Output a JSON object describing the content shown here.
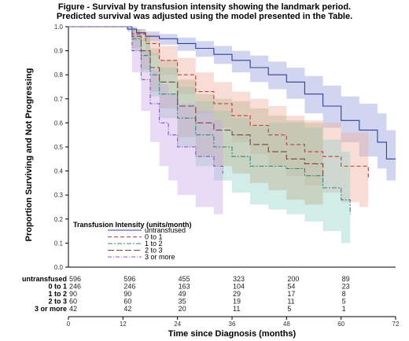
{
  "chart_data": {
    "type": "line",
    "title": "Figure - Survival by transfusion intensity showing the landmark period.",
    "subtitle": "Predicted survival was adjusted using the model presented in the Table.",
    "xlabel": "Time since Diagnosis (months)",
    "ylabel": "Proportion Surviving and Not Progressing",
    "xlim": [
      0,
      72
    ],
    "ylim": [
      0,
      1
    ],
    "x_ticks": [
      "0",
      "12",
      "24",
      "36",
      "48",
      "60",
      "72"
    ],
    "y_ticks": [
      "0.0",
      "0.1",
      "0.2",
      "0.3",
      "0.4",
      "0.5",
      "0.6",
      "0.7",
      "0.8",
      "0.9",
      "1.0"
    ],
    "legend": {
      "title": "Transfusion Intensity (units/month)",
      "placement": "bottom-left"
    },
    "series": [
      {
        "name": "untransfused",
        "color": "#2f3f9e",
        "band_color": "#8f96d8",
        "x": [
          0,
          12,
          13,
          15,
          17,
          20,
          24,
          28,
          32,
          36,
          40,
          44,
          48,
          52,
          56,
          60,
          64,
          68,
          70,
          72
        ],
        "y": [
          1.0,
          1.0,
          0.99,
          0.975,
          0.96,
          0.95,
          0.93,
          0.91,
          0.885,
          0.86,
          0.83,
          0.8,
          0.77,
          0.72,
          0.67,
          0.61,
          0.57,
          0.52,
          0.45,
          0.45
        ],
        "lower": [
          1.0,
          1.0,
          0.98,
          0.96,
          0.94,
          0.925,
          0.9,
          0.875,
          0.845,
          0.81,
          0.77,
          0.74,
          0.7,
          0.64,
          0.58,
          0.52,
          0.46,
          0.41,
          0.36,
          0.36
        ],
        "upper": [
          1.0,
          1.0,
          1.0,
          0.99,
          0.98,
          0.97,
          0.955,
          0.94,
          0.92,
          0.9,
          0.88,
          0.855,
          0.83,
          0.795,
          0.755,
          0.71,
          0.68,
          0.64,
          0.57,
          0.57
        ]
      },
      {
        "name": "0 to 1",
        "color": "#c23b3b",
        "band_color": "#eeaa9a",
        "x": [
          0,
          12,
          14,
          17,
          20,
          24,
          28,
          32,
          36,
          40,
          44,
          48,
          52,
          56,
          60,
          64,
          66
        ],
        "y": [
          1.0,
          1.0,
          0.97,
          0.93,
          0.86,
          0.8,
          0.73,
          0.68,
          0.63,
          0.59,
          0.55,
          0.51,
          0.48,
          0.46,
          0.42,
          0.42,
          0.37
        ],
        "lower": [
          1.0,
          1.0,
          0.94,
          0.88,
          0.8,
          0.72,
          0.64,
          0.58,
          0.52,
          0.47,
          0.42,
          0.38,
          0.34,
          0.31,
          0.27,
          0.25,
          0.23
        ],
        "upper": [
          1.0,
          1.0,
          0.99,
          0.97,
          0.92,
          0.87,
          0.81,
          0.77,
          0.73,
          0.7,
          0.67,
          0.63,
          0.61,
          0.6,
          0.56,
          0.56,
          0.53
        ]
      },
      {
        "name": "1 to 2",
        "color": "#2f8a7a",
        "band_color": "#8fcfc6",
        "x": [
          0,
          12,
          14,
          16,
          18,
          20,
          24,
          28,
          32,
          36,
          40,
          44,
          48,
          52,
          56,
          60,
          62
        ],
        "y": [
          1.0,
          1.0,
          0.95,
          0.88,
          0.8,
          0.72,
          0.62,
          0.55,
          0.5,
          0.46,
          0.42,
          0.42,
          0.41,
          0.38,
          0.33,
          0.28,
          0.22
        ],
        "lower": [
          1.0,
          1.0,
          0.9,
          0.81,
          0.71,
          0.62,
          0.5,
          0.42,
          0.36,
          0.31,
          0.26,
          0.24,
          0.22,
          0.19,
          0.15,
          0.1,
          0.06
        ],
        "upper": [
          1.0,
          1.0,
          0.99,
          0.95,
          0.89,
          0.83,
          0.75,
          0.69,
          0.65,
          0.62,
          0.59,
          0.6,
          0.6,
          0.58,
          0.53,
          0.48,
          0.43
        ]
      },
      {
        "name": "2 to 3",
        "color": "#6b4a3a",
        "band_color": "#bcae8a",
        "x": [
          0,
          12,
          14,
          16,
          18,
          20,
          24,
          28,
          32,
          36,
          40,
          44,
          48,
          52,
          56
        ],
        "y": [
          1.0,
          1.0,
          0.96,
          0.9,
          0.83,
          0.77,
          0.67,
          0.6,
          0.57,
          0.55,
          0.51,
          0.48,
          0.45,
          0.43,
          0.38
        ],
        "lower": [
          1.0,
          1.0,
          0.91,
          0.82,
          0.73,
          0.66,
          0.54,
          0.46,
          0.42,
          0.39,
          0.35,
          0.32,
          0.28,
          0.26,
          0.22
        ],
        "upper": [
          1.0,
          1.0,
          0.99,
          0.96,
          0.91,
          0.86,
          0.78,
          0.72,
          0.7,
          0.69,
          0.66,
          0.63,
          0.61,
          0.6,
          0.55
        ]
      },
      {
        "name": "3 or more",
        "color": "#8b4fc4",
        "band_color": "#c8a6e6",
        "x": [
          0,
          12,
          14,
          16,
          18,
          20,
          22,
          24,
          28,
          32,
          34
        ],
        "y": [
          1.0,
          1.0,
          0.9,
          0.78,
          0.68,
          0.6,
          0.55,
          0.5,
          0.46,
          0.42,
          0.39
        ],
        "lower": [
          1.0,
          1.0,
          0.81,
          0.65,
          0.52,
          0.42,
          0.36,
          0.3,
          0.25,
          0.22,
          0.19
        ],
        "upper": [
          1.0,
          1.0,
          0.98,
          0.9,
          0.82,
          0.76,
          0.72,
          0.68,
          0.65,
          0.61,
          0.58
        ]
      }
    ],
    "risk_table": {
      "times": [
        0,
        12,
        24,
        36,
        48,
        60
      ],
      "rows": [
        {
          "label": "untransfused",
          "counts": [
            "596",
            "596",
            "455",
            "323",
            "200",
            "89"
          ]
        },
        {
          "label": "0 to 1",
          "counts": [
            "246",
            "246",
            "163",
            "104",
            "54",
            "23"
          ]
        },
        {
          "label": "1 to 2",
          "counts": [
            "90",
            "90",
            "49",
            "29",
            "17",
            "8"
          ]
        },
        {
          "label": "2 to 3",
          "counts": [
            "60",
            "60",
            "35",
            "19",
            "11",
            "5"
          ]
        },
        {
          "label": "3 or more",
          "counts": [
            "42",
            "42",
            "20",
            "11",
            "5",
            "1"
          ]
        }
      ]
    }
  }
}
